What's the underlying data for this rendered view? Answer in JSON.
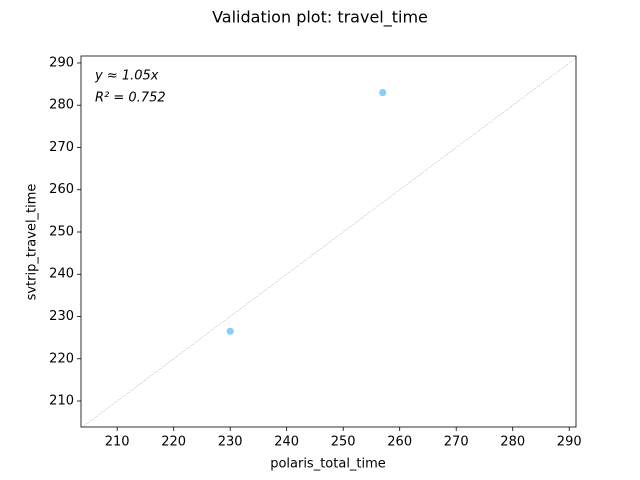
{
  "chart_data": {
    "type": "scatter",
    "title": "Validation plot: travel_time",
    "x_label": "polaris_total_time",
    "y_label": "svtrip_travel_time",
    "x": [
      230,
      257
    ],
    "values": [
      226.5,
      283
    ],
    "color": "#87cefa",
    "annotations": [
      "y ≈ 1.05x",
      "R² = 0.752"
    ],
    "xlim": [
      203.6,
      291.2
    ],
    "ylim": [
      203.85,
      291.65
    ],
    "xticks": [
      210,
      220,
      230,
      240,
      250,
      260,
      270,
      280,
      290
    ],
    "yticks": [
      210,
      220,
      230,
      240,
      250,
      260,
      270,
      280,
      290
    ],
    "grid": false
  }
}
